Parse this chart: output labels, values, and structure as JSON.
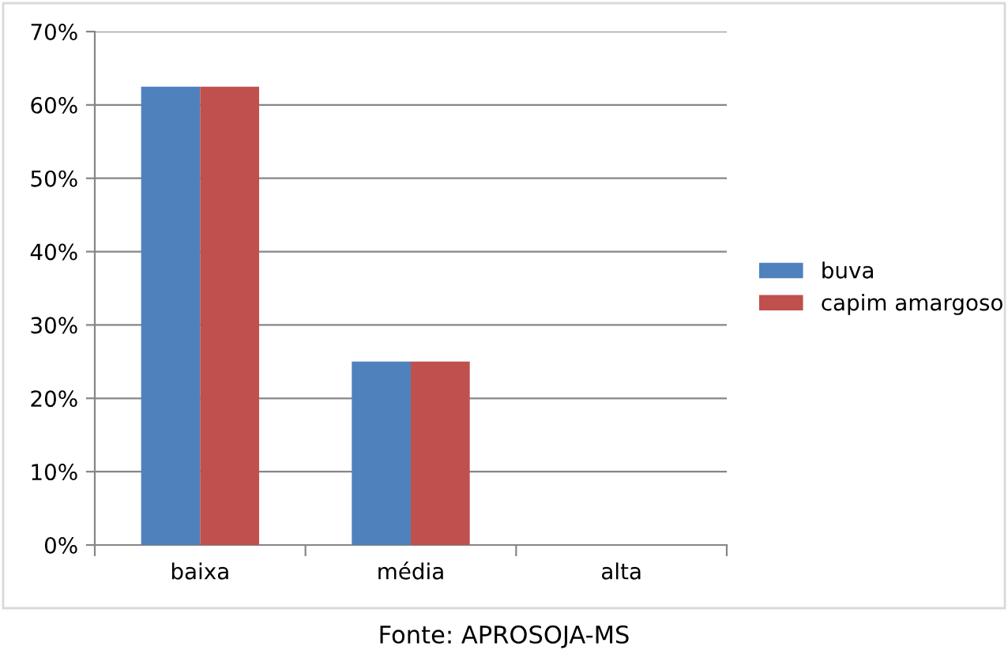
{
  "chart_data": {
    "type": "bar",
    "categories": [
      "baixa",
      "média",
      "alta"
    ],
    "series": [
      {
        "name": "buva",
        "color": "#4f81bd",
        "values": [
          62.5,
          25,
          0
        ]
      },
      {
        "name": "capim amargoso",
        "color": "#c0504d",
        "values": [
          62.5,
          25,
          0
        ]
      }
    ],
    "ylim": [
      0,
      70
    ],
    "yticks": [
      {
        "value": 0,
        "label": "0%"
      },
      {
        "value": 10,
        "label": "10%"
      },
      {
        "value": 20,
        "label": "20%"
      },
      {
        "value": 30,
        "label": "30%"
      },
      {
        "value": 40,
        "label": "40%"
      },
      {
        "value": 50,
        "label": "50%"
      },
      {
        "value": 60,
        "label": "60%"
      },
      {
        "value": 70,
        "label": "70%"
      }
    ],
    "grid": "y",
    "legend": "right",
    "annotations": [
      "Fonte: APROSOJA-MS"
    ]
  }
}
